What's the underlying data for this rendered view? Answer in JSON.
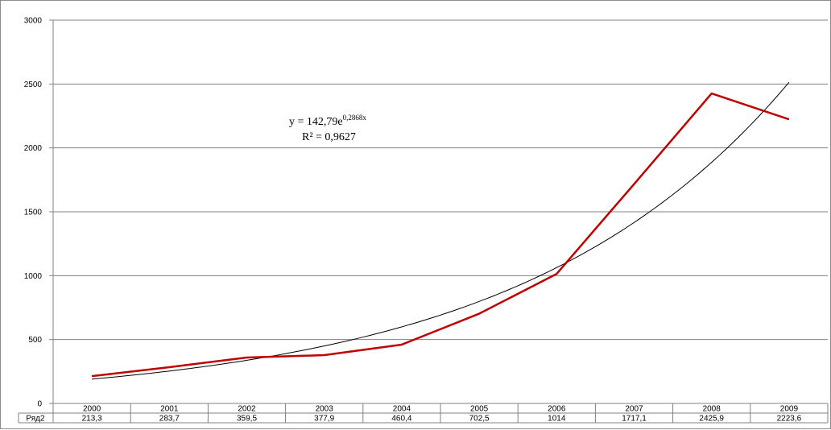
{
  "chart_data": {
    "type": "line",
    "categories": [
      "2000",
      "2001",
      "2002",
      "2003",
      "2004",
      "2005",
      "2006",
      "2007",
      "2008",
      "2009"
    ],
    "series": [
      {
        "name": "Ряд2",
        "values": [
          213.3,
          283.7,
          359.5,
          377.9,
          460.4,
          702.5,
          1014,
          1717.1,
          2425.9,
          2223.6
        ],
        "labels": [
          "213,3",
          "283,7",
          "359,5",
          "377,9",
          "460,4",
          "702,5",
          "1014",
          "1717,1",
          "2425,9",
          "2223,6"
        ],
        "color": "#c00000"
      }
    ],
    "trendline": {
      "type": "exponential",
      "a": 142.79,
      "b": 0.2868,
      "color": "#000000",
      "equation_base": "y = 142,79e",
      "equation_exp": "0,2868x",
      "r_squared": "R² = 0,9627"
    },
    "ylim": [
      0,
      3000
    ],
    "yticks": [
      "0",
      "500",
      "1000",
      "1500",
      "2000",
      "2500",
      "3000"
    ],
    "ytick_values": [
      0,
      500,
      1000,
      1500,
      2000,
      2500,
      3000
    ],
    "grid": true,
    "legend": "data table below x-axis"
  }
}
